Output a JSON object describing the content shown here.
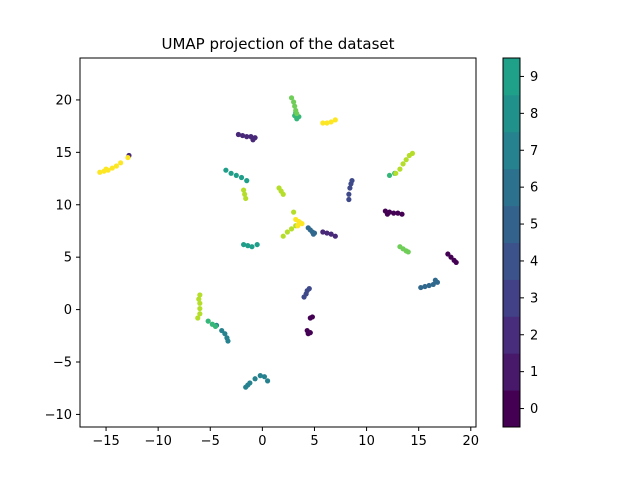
{
  "chart_data": {
    "type": "scatter",
    "title": "UMAP projection of the dataset",
    "xlabel": "",
    "ylabel": "",
    "xlim": [
      -17.5,
      20.5
    ],
    "ylim": [
      -11.2,
      24.0
    ],
    "x_ticks": [
      -15,
      -10,
      -5,
      0,
      5,
      10,
      15,
      20
    ],
    "y_ticks": [
      -10,
      -5,
      0,
      5,
      10,
      15,
      20
    ],
    "grid": false,
    "legend": "none",
    "colormap": "viridis",
    "colorbar": {
      "ticks": [
        0,
        1,
        2,
        3,
        4,
        5,
        6,
        7,
        8,
        9
      ],
      "colors": [
        "#440154",
        "#482878",
        "#3e4989",
        "#31688e",
        "#26828e",
        "#1f9e89",
        "#35b779",
        "#6ece58",
        "#b5de2b",
        "#fde725"
      ],
      "cbar_colors": [
        "#440154",
        "#48186a",
        "#472d7b",
        "#424086",
        "#3b528b",
        "#33638d",
        "#2c728e",
        "#26828e",
        "#21918c",
        "#1fa088"
      ]
    },
    "clusters": [
      {
        "label": 0,
        "points": [
          [
            11.8,
            9.4
          ],
          [
            12.2,
            9.3
          ],
          [
            12.6,
            9.2
          ],
          [
            13.0,
            9.2
          ],
          [
            13.4,
            9.1
          ],
          [
            12.0,
            9.1
          ]
        ]
      },
      {
        "label": 0,
        "points": [
          [
            17.8,
            5.3
          ],
          [
            18.1,
            5.0
          ],
          [
            18.4,
            4.7
          ],
          [
            18.6,
            4.5
          ]
        ]
      },
      {
        "label": 0,
        "points": [
          [
            4.3,
            -2.0
          ],
          [
            4.6,
            -2.2
          ],
          [
            4.4,
            -2.3
          ],
          [
            4.6,
            -0.8
          ],
          [
            4.8,
            -0.7
          ]
        ]
      },
      {
        "label": 1,
        "points": [
          [
            -2.3,
            16.7
          ],
          [
            -1.9,
            16.6
          ],
          [
            -1.5,
            16.5
          ],
          [
            -1.1,
            16.5
          ],
          [
            -0.7,
            16.4
          ],
          [
            -0.9,
            16.2
          ]
        ]
      },
      {
        "label": 1,
        "points": [
          [
            6.2,
            7.3
          ],
          [
            6.6,
            7.2
          ],
          [
            7.0,
            7.0
          ],
          [
            5.8,
            7.4
          ],
          [
            -12.8,
            14.7
          ]
        ]
      },
      {
        "label": 2,
        "points": [
          [
            4.0,
            1.2
          ],
          [
            4.2,
            1.5
          ],
          [
            4.3,
            1.8
          ],
          [
            4.5,
            2.0
          ]
        ]
      },
      {
        "label": 2,
        "points": [
          [
            8.3,
            10.5
          ],
          [
            8.3,
            11.0
          ],
          [
            8.4,
            11.6
          ],
          [
            8.5,
            12.0
          ],
          [
            8.6,
            12.3
          ]
        ]
      },
      {
        "label": 3,
        "points": [
          [
            15.2,
            2.1
          ],
          [
            15.6,
            2.2
          ],
          [
            16.0,
            2.3
          ],
          [
            16.4,
            2.4
          ],
          [
            16.8,
            2.6
          ],
          [
            16.6,
            2.8
          ]
        ]
      },
      {
        "label": 3,
        "points": [
          [
            4.4,
            7.8
          ],
          [
            4.6,
            7.6
          ],
          [
            4.8,
            7.4
          ],
          [
            5.0,
            7.3
          ],
          [
            4.9,
            7.2
          ]
        ]
      },
      {
        "label": 4,
        "points": [
          [
            -1.6,
            -7.4
          ],
          [
            -1.2,
            -7.0
          ],
          [
            -0.7,
            -6.6
          ],
          [
            -0.2,
            -6.3
          ],
          [
            0.2,
            -6.4
          ],
          [
            0.5,
            -6.8
          ],
          [
            -1.4,
            -7.2
          ]
        ]
      },
      {
        "label": 4,
        "points": [
          [
            -3.9,
            -2.0
          ],
          [
            -3.6,
            -2.3
          ],
          [
            -3.4,
            -2.7
          ],
          [
            -3.3,
            -3.0
          ],
          [
            -4.4,
            -1.5
          ]
        ]
      },
      {
        "label": 5,
        "points": [
          [
            -3.5,
            13.3
          ],
          [
            -3.0,
            13.0
          ],
          [
            -2.5,
            12.8
          ],
          [
            -2.0,
            12.6
          ],
          [
            -1.5,
            12.3
          ]
        ]
      },
      {
        "label": 5,
        "points": [
          [
            -1.8,
            6.2
          ],
          [
            -1.4,
            6.1
          ],
          [
            -1.0,
            6.0
          ],
          [
            -0.5,
            6.2
          ]
        ]
      },
      {
        "label": 6,
        "points": [
          [
            3.1,
            18.5
          ],
          [
            3.3,
            18.2
          ],
          [
            3.5,
            18.4
          ],
          [
            3.2,
            18.8
          ],
          [
            12.2,
            12.8
          ],
          [
            12.7,
            13.0
          ]
        ]
      },
      {
        "label": 6,
        "points": [
          [
            -5.2,
            -1.1
          ],
          [
            -4.8,
            -1.4
          ],
          [
            -4.5,
            -1.6
          ]
        ]
      },
      {
        "label": 7,
        "points": [
          [
            2.8,
            20.2
          ],
          [
            3.0,
            19.8
          ],
          [
            3.1,
            19.4
          ],
          [
            3.2,
            19.0
          ],
          [
            3.3,
            18.7
          ]
        ]
      },
      {
        "label": 7,
        "points": [
          [
            13.2,
            6.0
          ],
          [
            13.5,
            5.8
          ],
          [
            13.8,
            5.6
          ],
          [
            14.0,
            5.5
          ]
        ]
      },
      {
        "label": 8,
        "points": [
          [
            -1.8,
            11.4
          ],
          [
            -1.7,
            11.0
          ],
          [
            -1.6,
            10.6
          ],
          [
            1.6,
            11.6
          ],
          [
            1.8,
            11.3
          ],
          [
            2.0,
            11.0
          ]
        ]
      },
      {
        "label": 8,
        "points": [
          [
            -6.2,
            -0.8
          ],
          [
            -6.0,
            -0.4
          ],
          [
            -6.0,
            0.1
          ],
          [
            -6.0,
            0.6
          ],
          [
            -6.1,
            1.0
          ],
          [
            -6.0,
            1.4
          ]
        ]
      },
      {
        "label": 8,
        "points": [
          [
            12.8,
            13.0
          ],
          [
            13.2,
            13.4
          ],
          [
            13.5,
            13.9
          ],
          [
            13.8,
            14.3
          ],
          [
            14.1,
            14.7
          ],
          [
            14.4,
            14.9
          ]
        ]
      },
      {
        "label": 8,
        "points": [
          [
            2.0,
            7.0
          ],
          [
            2.4,
            7.4
          ],
          [
            2.8,
            7.7
          ],
          [
            3.2,
            8.0
          ],
          [
            3.6,
            8.3
          ],
          [
            3.0,
            9.3
          ]
        ]
      },
      {
        "label": 9,
        "points": [
          [
            -15.6,
            13.1
          ],
          [
            -15.2,
            13.2
          ],
          [
            -14.8,
            13.3
          ],
          [
            -14.4,
            13.5
          ],
          [
            -14.0,
            13.7
          ],
          [
            -13.6,
            14.0
          ],
          [
            -15.0,
            13.4
          ]
        ]
      },
      {
        "label": 9,
        "points": [
          [
            5.8,
            17.8
          ],
          [
            6.2,
            17.8
          ],
          [
            6.6,
            17.9
          ],
          [
            7.0,
            18.1
          ]
        ]
      },
      {
        "label": 9,
        "points": [
          [
            3.2,
            8.6
          ],
          [
            3.5,
            8.4
          ],
          [
            3.8,
            8.2
          ],
          [
            3.4,
            8.0
          ],
          [
            -12.9,
            14.5
          ]
        ]
      }
    ]
  }
}
